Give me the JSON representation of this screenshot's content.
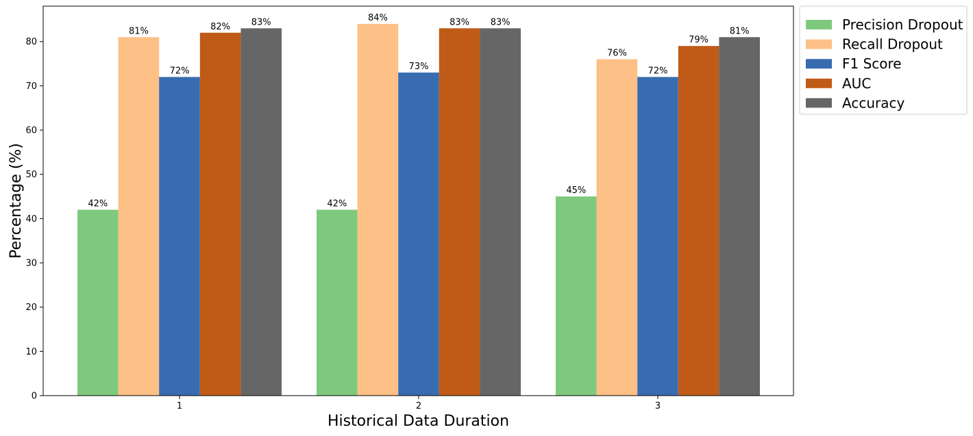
{
  "chart_data": {
    "type": "bar",
    "xlabel": "Historical Data Duration",
    "ylabel": "Percentage (%)",
    "ylim": [
      0,
      88
    ],
    "yticks": [
      0,
      10,
      20,
      30,
      40,
      50,
      60,
      70,
      80
    ],
    "categories": [
      "1",
      "2",
      "3"
    ],
    "series": [
      {
        "name": "Precision Dropout",
        "color": "#7fc97f",
        "values": [
          42,
          42,
          45
        ]
      },
      {
        "name": "Recall Dropout",
        "color": "#fdc086",
        "values": [
          81,
          84,
          76
        ]
      },
      {
        "name": "F1 Score",
        "color": "#386cb0",
        "values": [
          72,
          73,
          72
        ]
      },
      {
        "name": "AUC",
        "color": "#bf5b17",
        "values": [
          82,
          83,
          79
        ]
      },
      {
        "name": "Accuracy",
        "color": "#666666",
        "values": [
          83,
          83,
          81
        ]
      }
    ],
    "value_label_suffix": "%",
    "legend_position": "outside-top-right",
    "grid": false
  }
}
